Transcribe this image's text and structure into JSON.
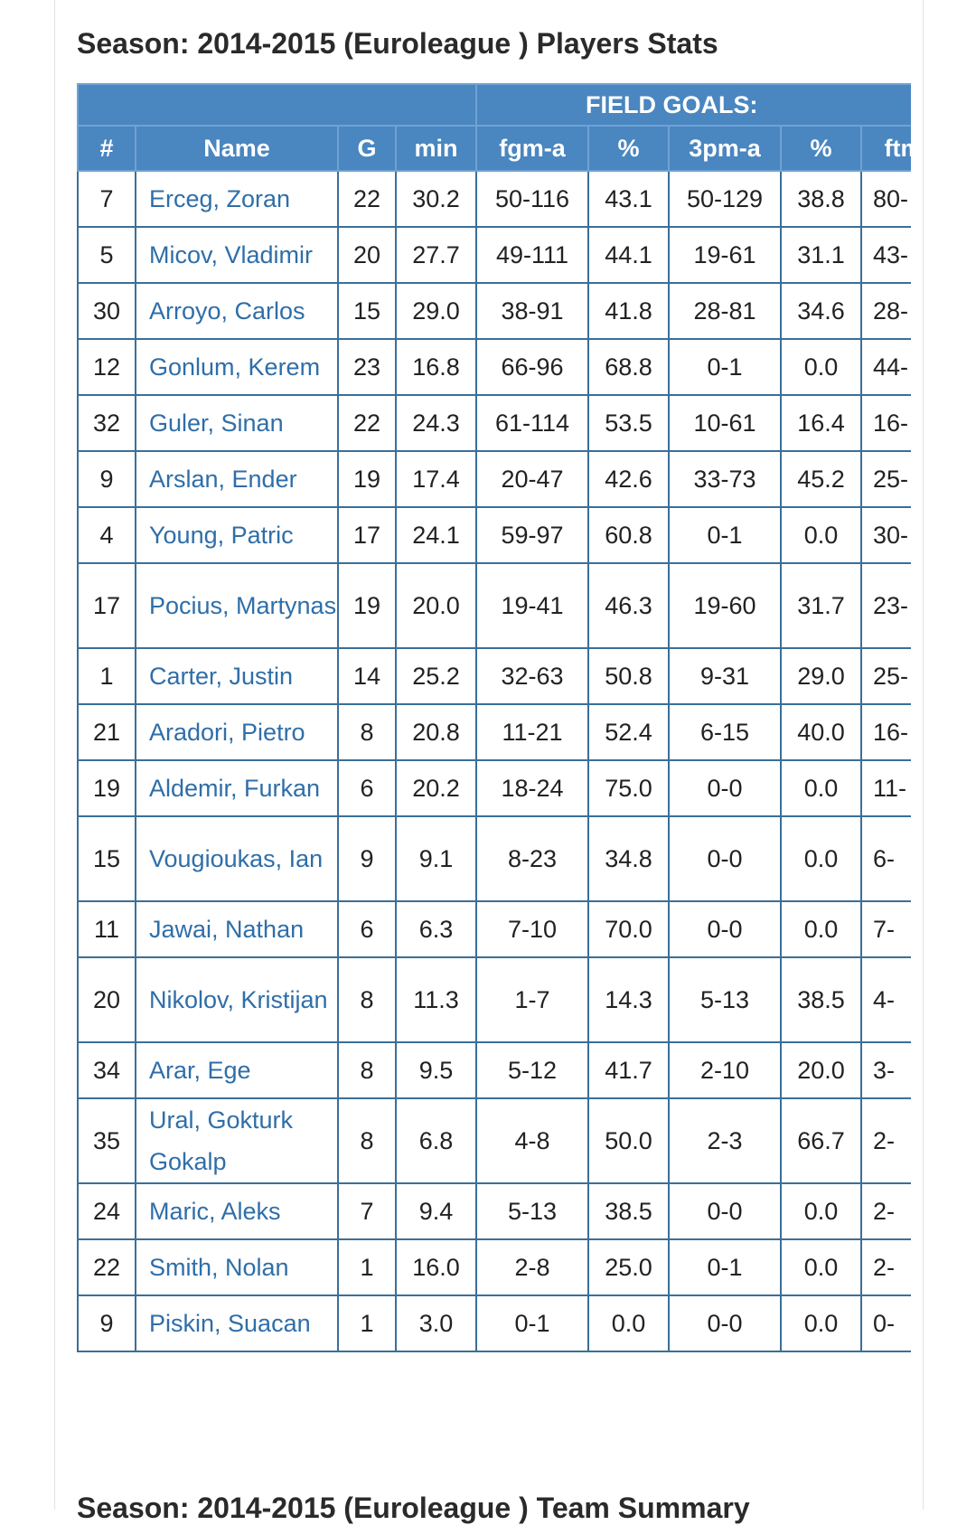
{
  "title": "Season: 2014-2015 (Euroleague ) Players Stats",
  "next_title": "Season: 2014-2015 (Euroleague ) Team Summary",
  "group_header": "FIELD GOALS:",
  "columns": [
    "#",
    "Name",
    "G",
    "min",
    "fgm-a",
    "%",
    "3pm-a",
    "%",
    "ftm"
  ],
  "rows": [
    {
      "num": "7",
      "name": "Erceg, Zoran",
      "g": "22",
      "min": "30.2",
      "fgm": "50-116",
      "fgp": "43.1",
      "tpm": "50-129",
      "tpp": "38.8",
      "ftm": "80-"
    },
    {
      "num": "5",
      "name": "Micov, Vladimir",
      "g": "20",
      "min": "27.7",
      "fgm": "49-111",
      "fgp": "44.1",
      "tpm": "19-61",
      "tpp": "31.1",
      "ftm": "43-"
    },
    {
      "num": "30",
      "name": "Arroyo, Carlos",
      "g": "15",
      "min": "29.0",
      "fgm": "38-91",
      "fgp": "41.8",
      "tpm": "28-81",
      "tpp": "34.6",
      "ftm": "28-"
    },
    {
      "num": "12",
      "name": "Gonlum, Kerem",
      "g": "23",
      "min": "16.8",
      "fgm": "66-96",
      "fgp": "68.8",
      "tpm": "0-1",
      "tpp": "0.0",
      "ftm": "44-"
    },
    {
      "num": "32",
      "name": "Guler, Sinan",
      "g": "22",
      "min": "24.3",
      "fgm": "61-114",
      "fgp": "53.5",
      "tpm": "10-61",
      "tpp": "16.4",
      "ftm": "16-"
    },
    {
      "num": "9",
      "name": "Arslan, Ender",
      "g": "19",
      "min": "17.4",
      "fgm": "20-47",
      "fgp": "42.6",
      "tpm": "33-73",
      "tpp": "45.2",
      "ftm": "25-"
    },
    {
      "num": "4",
      "name": "Young, Patric",
      "g": "17",
      "min": "24.1",
      "fgm": "59-97",
      "fgp": "60.8",
      "tpm": "0-1",
      "tpp": "0.0",
      "ftm": "30-"
    },
    {
      "num": "17",
      "name": "Pocius, Martynas",
      "g": "19",
      "min": "20.0",
      "fgm": "19-41",
      "fgp": "46.3",
      "tpm": "19-60",
      "tpp": "31.7",
      "ftm": "23-"
    },
    {
      "num": "1",
      "name": "Carter, Justin",
      "g": "14",
      "min": "25.2",
      "fgm": "32-63",
      "fgp": "50.8",
      "tpm": "9-31",
      "tpp": "29.0",
      "ftm": "25-"
    },
    {
      "num": "21",
      "name": "Aradori, Pietro",
      "g": "8",
      "min": "20.8",
      "fgm": "11-21",
      "fgp": "52.4",
      "tpm": "6-15",
      "tpp": "40.0",
      "ftm": "16-"
    },
    {
      "num": "19",
      "name": "Aldemir, Furkan",
      "g": "6",
      "min": "20.2",
      "fgm": "18-24",
      "fgp": "75.0",
      "tpm": "0-0",
      "tpp": "0.0",
      "ftm": "11-"
    },
    {
      "num": "15",
      "name": "Vougioukas, Ian",
      "g": "9",
      "min": "9.1",
      "fgm": "8-23",
      "fgp": "34.8",
      "tpm": "0-0",
      "tpp": "0.0",
      "ftm": "6-"
    },
    {
      "num": "11",
      "name": "Jawai, Nathan",
      "g": "6",
      "min": "6.3",
      "fgm": "7-10",
      "fgp": "70.0",
      "tpm": "0-0",
      "tpp": "0.0",
      "ftm": "7-"
    },
    {
      "num": "20",
      "name": "Nikolov, Kristijan",
      "g": "8",
      "min": "11.3",
      "fgm": "1-7",
      "fgp": "14.3",
      "tpm": "5-13",
      "tpp": "38.5",
      "ftm": "4-"
    },
    {
      "num": "34",
      "name": "Arar, Ege",
      "g": "8",
      "min": "9.5",
      "fgm": "5-12",
      "fgp": "41.7",
      "tpm": "2-10",
      "tpp": "20.0",
      "ftm": "3-"
    },
    {
      "num": "35",
      "name": "Ural, Gokturk Gokalp",
      "g": "8",
      "min": "6.8",
      "fgm": "4-8",
      "fgp": "50.0",
      "tpm": "2-3",
      "tpp": "66.7",
      "ftm": "2-"
    },
    {
      "num": "24",
      "name": "Maric, Aleks",
      "g": "7",
      "min": "9.4",
      "fgm": "5-13",
      "fgp": "38.5",
      "tpm": "0-0",
      "tpp": "0.0",
      "ftm": "2-"
    },
    {
      "num": "22",
      "name": "Smith, Nolan",
      "g": "1",
      "min": "16.0",
      "fgm": "2-8",
      "fgp": "25.0",
      "tpm": "0-1",
      "tpp": "0.0",
      "ftm": "2-"
    },
    {
      "num": "9",
      "name": "Piskin, Suacan",
      "g": "1",
      "min": "3.0",
      "fgm": "0-1",
      "fgp": "0.0",
      "tpm": "0-0",
      "tpp": "0.0",
      "ftm": "0-"
    }
  ],
  "colors": {
    "header_bg": "#4a86c0",
    "link": "#2f6ea8",
    "border": "#3a6f99"
  }
}
